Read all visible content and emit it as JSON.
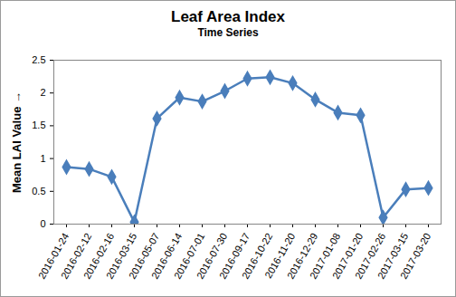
{
  "chart_data": {
    "type": "line",
    "title": "Leaf Area Index",
    "subtitle": "Time Series",
    "y_label": "Mean LAI Value",
    "categories": [
      "2016-01-24",
      "2016-02-12",
      "2016-02-16",
      "2016-03-15",
      "2016-05-07",
      "2016-06-14",
      "2016-07-01",
      "2016-07-30",
      "2016-09-17",
      "2016-10-22",
      "2016-11-20",
      "2016-12-29",
      "2017-01-08",
      "2017-01-20",
      "2017-02-26",
      "2017-03-15",
      "2017-03-20"
    ],
    "values": [
      0.87,
      0.84,
      0.72,
      0.03,
      1.61,
      1.93,
      1.87,
      2.03,
      2.22,
      2.24,
      2.15,
      1.9,
      1.7,
      1.66,
      0.1,
      0.53,
      0.55
    ],
    "color": "#4a7ebb",
    "marker": "diamond",
    "ylim": [
      0,
      2.5
    ],
    "yticks": [
      0,
      0.5,
      1,
      1.5,
      2,
      2.5
    ],
    "grid": false
  }
}
